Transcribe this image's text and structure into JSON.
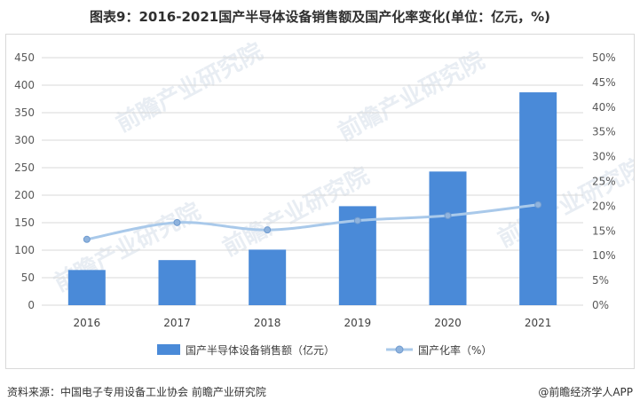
{
  "title": "图表9：2016-2021国产半导体设备销售额及国产化率变化(单位：亿元，%)",
  "footer": {
    "source": "资料来源：中国电子专用设备工业协会 前瞻产业研究院",
    "brand": "@前瞻经济学人APP"
  },
  "watermark_text": "前瞻产业研究院",
  "chart_data": {
    "type": "bar",
    "categories": [
      "2016",
      "2017",
      "2018",
      "2019",
      "2020",
      "2021"
    ],
    "series": [
      {
        "name": "国产半导体设备销售额（亿元）",
        "type": "bar",
        "axis": "left",
        "color": "#4a8ad8",
        "values": [
          64,
          82,
          101,
          180,
          243,
          387
        ]
      },
      {
        "name": "国产化率（%）",
        "type": "line",
        "axis": "right",
        "color": "#a9c9ea",
        "values": [
          13.3,
          16.7,
          15.2,
          17.1,
          18.1,
          20.3
        ]
      }
    ],
    "y_left": {
      "min": 0,
      "max": 450,
      "step": 50,
      "ticks": [
        "0",
        "50",
        "100",
        "150",
        "200",
        "250",
        "300",
        "350",
        "400",
        "450"
      ]
    },
    "y_right": {
      "min": 0,
      "max": 50,
      "step": 5,
      "ticks": [
        "0%",
        "5%",
        "10%",
        "15%",
        "20%",
        "25%",
        "30%",
        "35%",
        "40%",
        "45%",
        "50%"
      ]
    },
    "grid": true,
    "legend_position": "bottom"
  }
}
